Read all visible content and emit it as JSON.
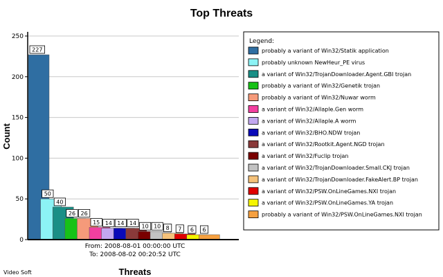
{
  "chart_data": {
    "type": "bar",
    "title": "Top Threats",
    "xlabel": "Threats",
    "ylabel": "Count",
    "ylim": [
      0,
      250
    ],
    "yticks": [
      0,
      50,
      100,
      150,
      200,
      250
    ],
    "grid": true,
    "legend_title": "Legend:",
    "legend_position": "right",
    "date_range": {
      "from": "From: 2008-08-01 00:00:00 UTC",
      "to": "To: 2008-08-02 00:20:52 UTC"
    },
    "series": [
      {
        "name": "probably a variant of Win32/Statik application",
        "value": 227,
        "color": "#2f6ea2"
      },
      {
        "name": "probably unknown NewHeur_PE virus",
        "value": 50,
        "color": "#8cf3f5"
      },
      {
        "name": "a variant of Win32/TrojanDownloader.Agent.GBI trojan",
        "value": 40,
        "color": "#1a8f86"
      },
      {
        "name": "probably a variant of Win32/Genetik trojan",
        "value": 26,
        "color": "#17c217"
      },
      {
        "name": "probably a variant of Win32/Nuwar worm",
        "value": 26,
        "color": "#f59a7a"
      },
      {
        "name": "a variant of Win32/Allaple.Gen worm",
        "value": 15,
        "color": "#f23fa0"
      },
      {
        "name": "a variant of Win32/Allaple.A worm",
        "value": 14,
        "color": "#c2a8f0"
      },
      {
        "name": "a variant of Win32/BHO.NDW trojan",
        "value": 14,
        "color": "#0a0ab8"
      },
      {
        "name": "a variant of Win32/Rootkit.Agent.NGD trojan",
        "value": 14,
        "color": "#8a3a3a"
      },
      {
        "name": "a variant of Win32/Fuclip trojan",
        "value": 10,
        "color": "#7a0000"
      },
      {
        "name": "a variant of Win32/TrojanDownloader.Small.CKJ trojan",
        "value": 10,
        "color": "#c2c2c2"
      },
      {
        "name": "a variant of Win32/TrojanDownloader.FakeAlert.BP trojan",
        "value": 8,
        "color": "#f5c27a"
      },
      {
        "name": "a variant of Win32/PSW.OnLineGames.NXI trojan",
        "value": 7,
        "color": "#e00000"
      },
      {
        "name": "a variant of Win32/PSW.OnLineGames.YA trojan",
        "value": 6,
        "color": "#f5f500"
      },
      {
        "name": "probably a variant of Win32/PSW.OnLineGames.NXI trojan",
        "value": 6,
        "color": "#f5a040"
      }
    ]
  },
  "footer": {
    "credit": "Video Soft"
  }
}
